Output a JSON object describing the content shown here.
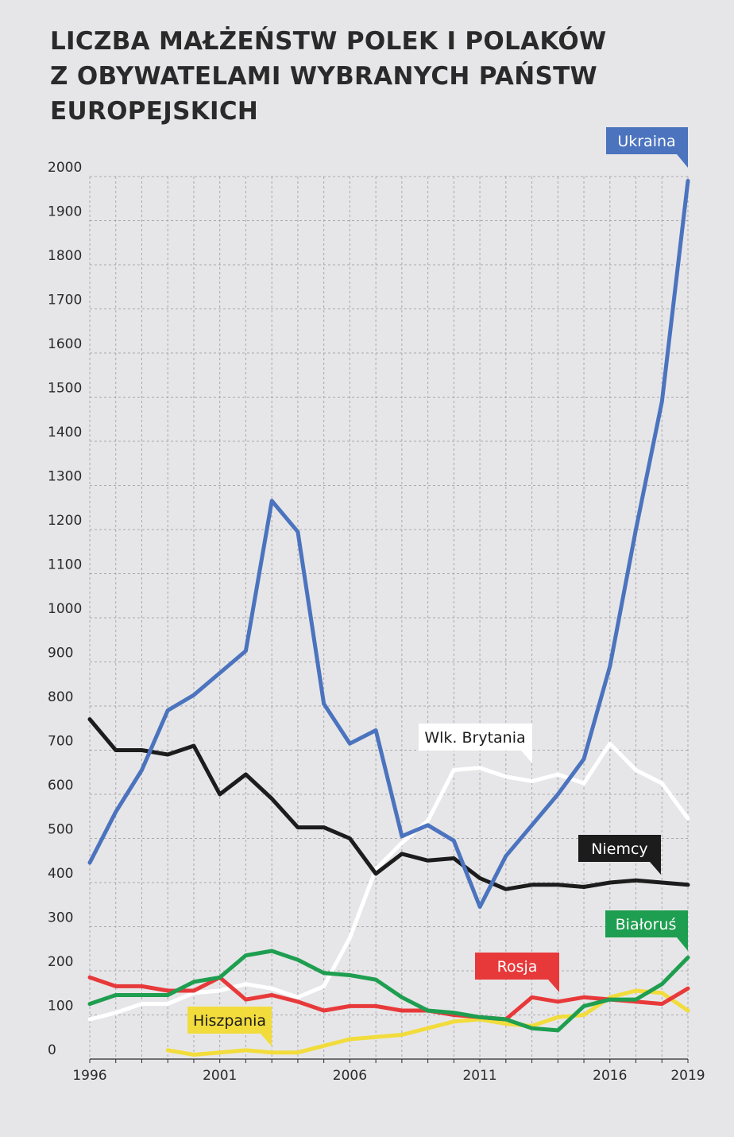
{
  "title_lines": [
    "LICZBA MAŁŻEŃSTW POLEK I POLAKÓW",
    "Z OBYWATELAMI WYBRANYCH PAŃSTW",
    "EUROPEJSKICH"
  ],
  "chart_data": {
    "type": "line",
    "title": "LICZBA MAŁŻEŃSTW POLEK I POLAKÓW Z OBYWATELAMI WYBRANYCH PAŃSTW EUROPEJSKICH",
    "xlabel": "",
    "ylabel": "",
    "xlim": [
      1996,
      2019
    ],
    "ylim": [
      0,
      2000
    ],
    "x_ticks": [
      1996,
      2001,
      2006,
      2011,
      2016,
      2019
    ],
    "y_ticks": [
      0,
      100,
      200,
      300,
      400,
      500,
      600,
      700,
      800,
      900,
      1000,
      1100,
      1200,
      1300,
      1400,
      1500,
      1600,
      1700,
      1800,
      1900,
      2000
    ],
    "grid": true,
    "x": [
      1996,
      1997,
      1998,
      1999,
      2000,
      2001,
      2002,
      2003,
      2004,
      2005,
      2006,
      2007,
      2008,
      2009,
      2010,
      2011,
      2012,
      2013,
      2014,
      2015,
      2016,
      2017,
      2018,
      2019
    ],
    "series": [
      {
        "name": "Wlk. Brytania",
        "color": "#ffffff",
        "values": [
          90,
          105,
          125,
          125,
          150,
          155,
          170,
          160,
          140,
          165,
          275,
          430,
          490,
          540,
          655,
          660,
          640,
          630,
          645,
          625,
          715,
          655,
          625,
          545
        ]
      },
      {
        "name": "Hiszpania",
        "color": "#f2dc3c",
        "values": [
          null,
          null,
          null,
          20,
          10,
          15,
          20,
          15,
          15,
          30,
          45,
          50,
          55,
          70,
          85,
          90,
          80,
          75,
          95,
          100,
          140,
          155,
          150,
          110
        ]
      },
      {
        "name": "Rosja",
        "color": "#e8393a",
        "values": [
          185,
          165,
          165,
          155,
          155,
          185,
          135,
          145,
          130,
          110,
          120,
          120,
          110,
          110,
          100,
          95,
          90,
          140,
          130,
          140,
          135,
          130,
          125,
          160
        ]
      },
      {
        "name": "Białoruś",
        "color": "#1e9e50",
        "values": [
          125,
          145,
          145,
          145,
          175,
          185,
          235,
          245,
          225,
          195,
          190,
          180,
          140,
          110,
          105,
          95,
          90,
          70,
          65,
          120,
          135,
          135,
          170,
          230
        ]
      },
      {
        "name": "Niemcy",
        "color": "#1c1c1c",
        "values": [
          770,
          700,
          700,
          690,
          710,
          600,
          645,
          590,
          525,
          525,
          500,
          420,
          465,
          450,
          455,
          410,
          385,
          395,
          395,
          390,
          400,
          405,
          400,
          395
        ]
      },
      {
        "name": "Ukraina",
        "color": "#4b73be",
        "values": [
          445,
          560,
          655,
          790,
          825,
          875,
          925,
          1265,
          1195,
          805,
          715,
          745,
          505,
          530,
          495,
          345,
          460,
          530,
          600,
          680,
          890,
          1200,
          1490,
          1990
        ]
      }
    ]
  },
  "labels": {
    "ukraina": "Ukraina",
    "wlk_brytania": "Wlk. Brytania",
    "niemcy": "Niemcy",
    "bialorus": "Białoruś",
    "rosja": "Rosja",
    "hiszpania": "Hiszpania"
  }
}
